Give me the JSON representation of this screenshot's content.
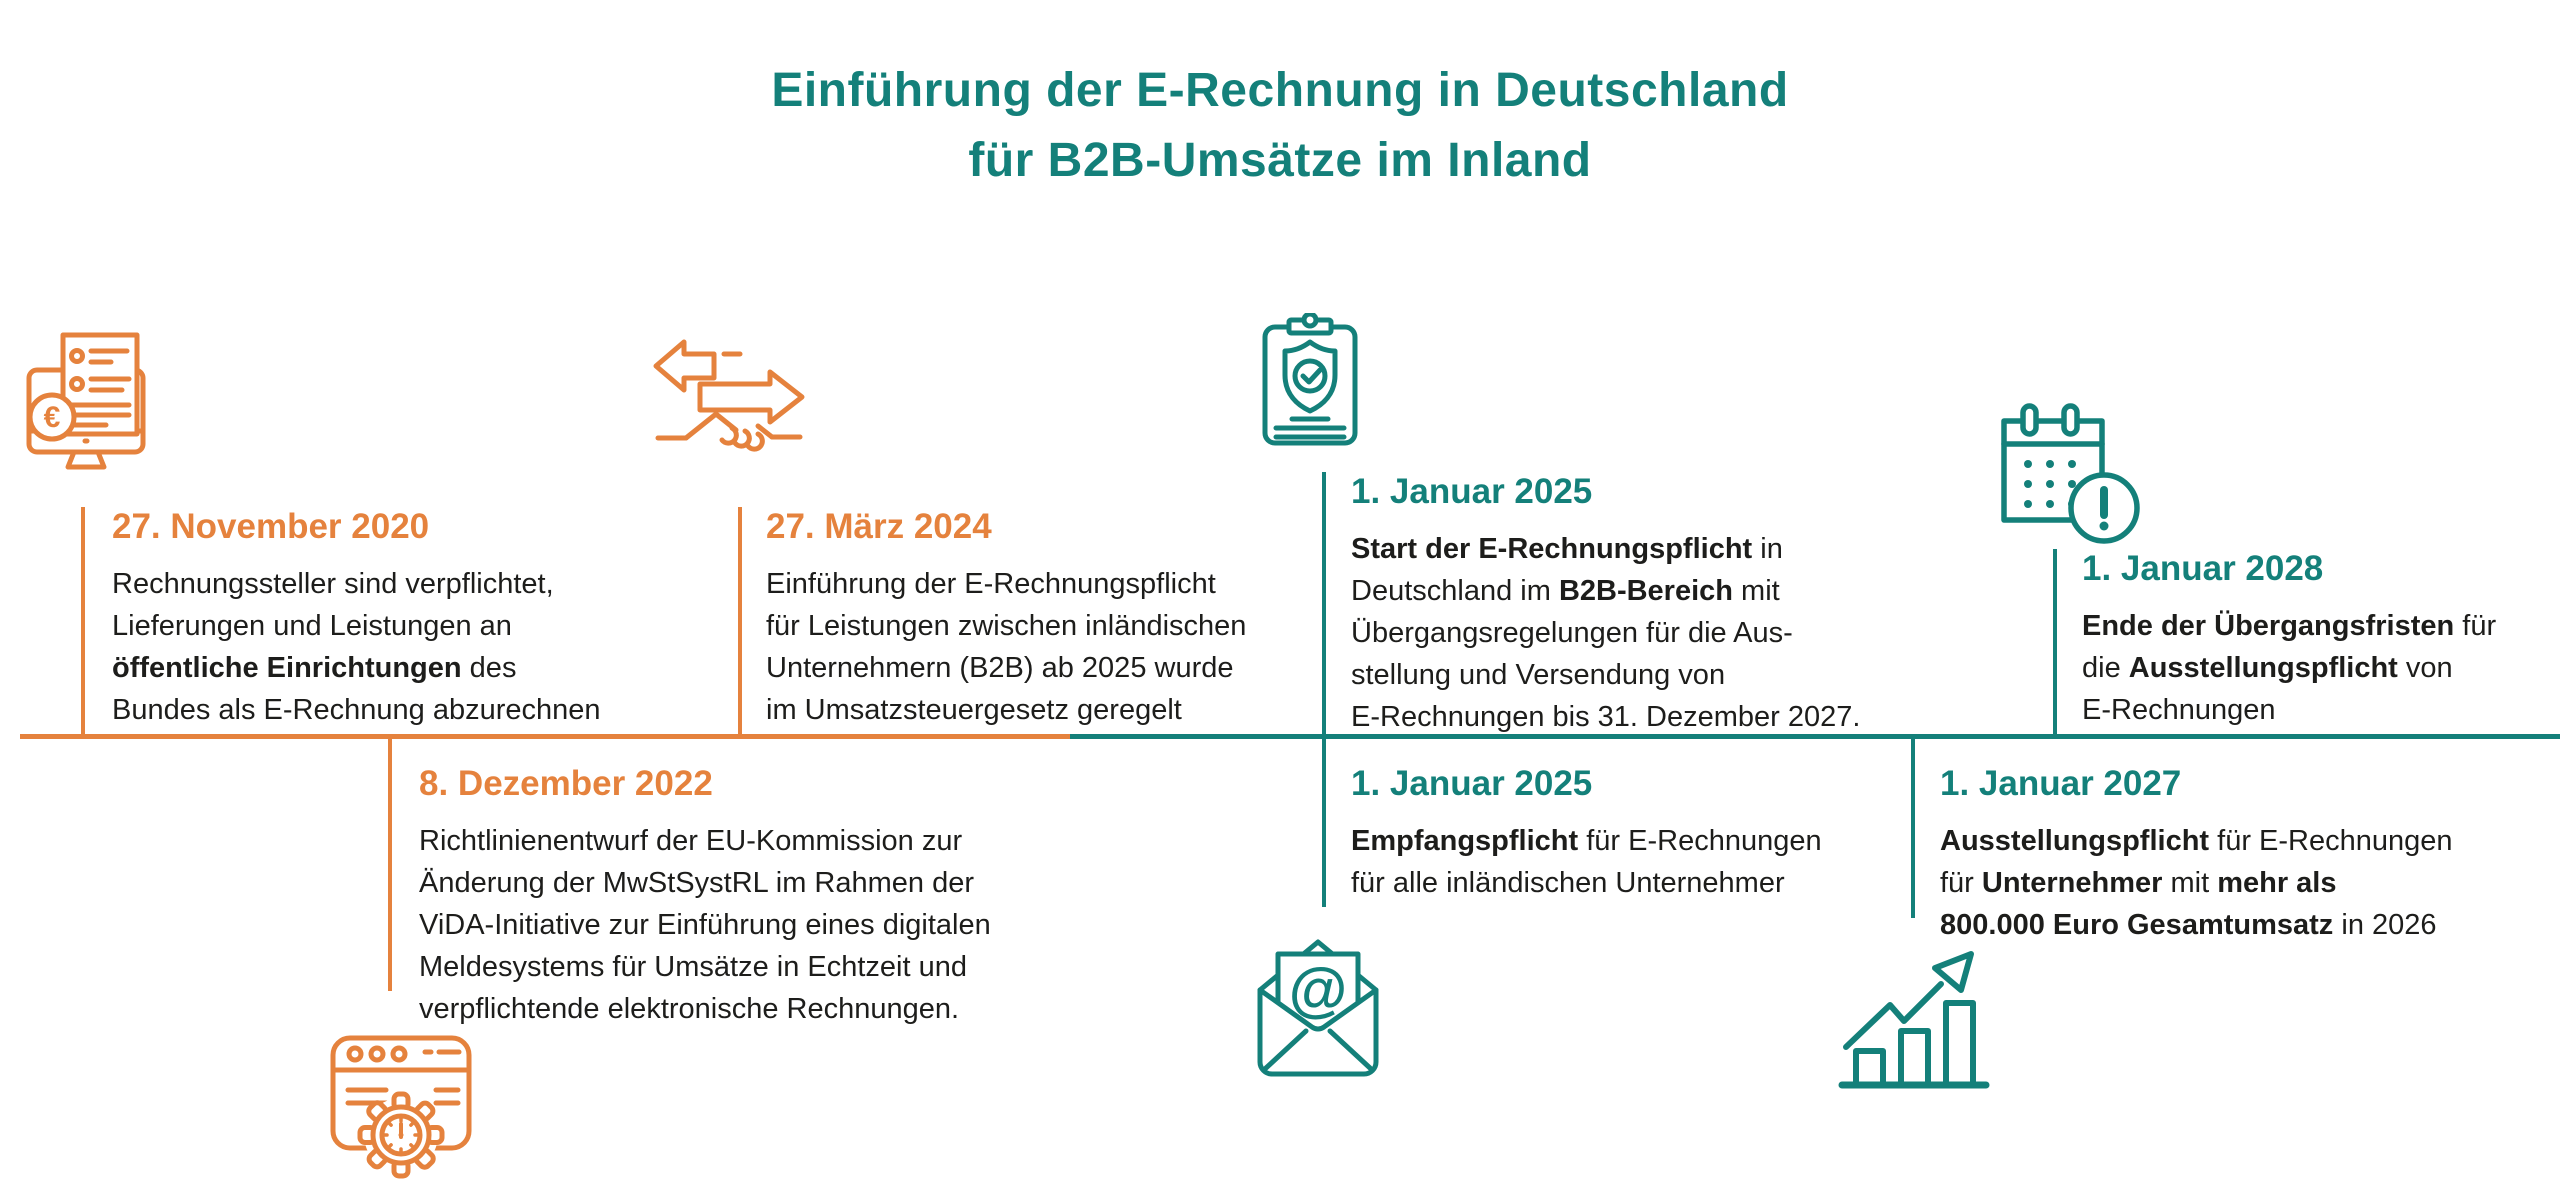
{
  "title": {
    "line1": "Einführung der E-Rechnung in Deutschland",
    "line2": "für B2B-Umsätze im Inland"
  },
  "colors": {
    "teal": "#14807A",
    "orange": "#E5823D",
    "ink": "#1D1D1B",
    "background": "#FFFFFF"
  },
  "timeline": {
    "axis": {
      "left_segment_color": "#E5823D",
      "right_segment_color": "#14807A"
    },
    "entries": [
      {
        "date": "27. November 2020",
        "accent": "orange",
        "side": "above",
        "icon": "invoice-monitor-icon",
        "lines": [
          "Rechnungssteller sind verpflichtet,",
          "Lieferungen und Leistungen an",
          "**öffentliche Einrichtungen** des",
          "Bundes als E-Rechnung abzurechnen"
        ]
      },
      {
        "date": "27. März 2024",
        "accent": "orange",
        "side": "above",
        "icon": "handshake-arrows-icon",
        "lines": [
          "Einführung der E-Rechnungspflicht",
          "für Leistungen zwischen inländischen",
          "Unternehmern (B2B) ab 2025 wurde",
          "im Umsatzsteuergesetz geregelt"
        ]
      },
      {
        "date": "1. Januar 2025",
        "accent": "teal",
        "side": "above",
        "icon": "clipboard-shield-check-icon",
        "lines": [
          "**Start der E-Rechnungspflicht** in",
          "Deutschland im **B2B-Bereich** mit",
          "Übergangsregelungen für die Aus-",
          "stellung und Versendung von",
          "E-Rechnungen bis 31. Dezember 2027."
        ]
      },
      {
        "date": "1. Januar 2028",
        "accent": "teal",
        "side": "above",
        "icon": "calendar-alert-icon",
        "lines": [
          "**Ende der Übergangsfristen** für",
          "die **Ausstellungspflicht** von",
          "E-Rechnungen"
        ]
      },
      {
        "date": "8. Dezember 2022",
        "accent": "orange",
        "side": "below",
        "icon": "browser-gear-icon",
        "lines": [
          "Richtlinienentwurf der EU-Kommission zur",
          "Änderung der MwStSystRL im Rahmen der",
          "ViDA-Initiative zur Einführung eines digitalen",
          "Meldesystems für Umsätze in Echtzeit und",
          "verpflichtende elektronische Rechnungen."
        ]
      },
      {
        "date": "1. Januar 2025",
        "accent": "teal",
        "side": "below",
        "icon": "envelope-at-icon",
        "lines": [
          "**Empfangspflicht** für E-Rechnungen",
          "für alle inländischen Unternehmer"
        ]
      },
      {
        "date": "1. Januar 2027",
        "accent": "teal",
        "side": "below",
        "icon": "growth-chart-icon",
        "lines": [
          "**Ausstellungspflicht** für E-Rechnungen",
          "für **Unternehmer** mit **mehr als**",
          "**800.000 Euro Gesamtumsatz** in 2026"
        ]
      }
    ]
  }
}
